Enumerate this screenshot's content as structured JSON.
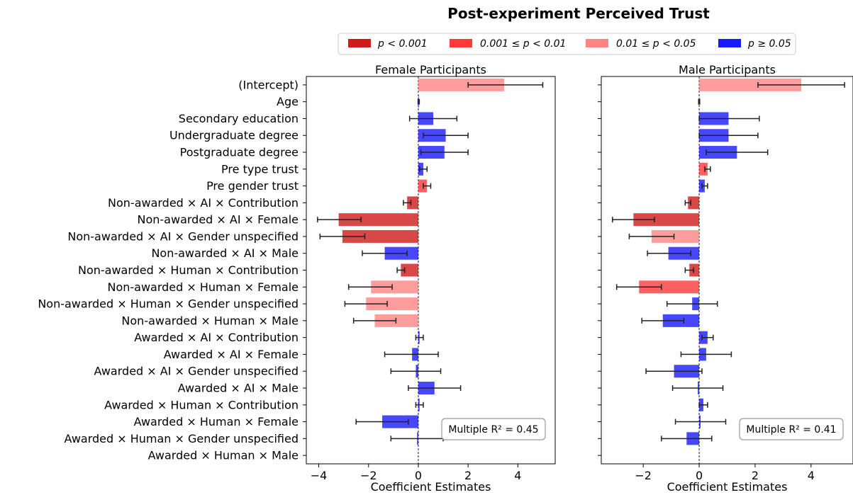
{
  "chart_data": {
    "type": "bar",
    "orientation": "horizontal",
    "title": "Post-experiment Perceived Trust",
    "categories": [
      "(Intercept)",
      "Age",
      "Secondary education",
      "Undergraduate degree",
      "Postgraduate degree",
      "Pre type trust",
      "Pre gender trust",
      "Non-awarded × AI × Contribution",
      "Non-awarded × AI × Female",
      "Non-awarded × AI × Gender unspecified",
      "Non-awarded × AI × Male",
      "Non-awarded × Human × Contribution",
      "Non-awarded × Human × Female",
      "Non-awarded × Human × Gender unspecified",
      "Non-awarded × Human × Male",
      "Awarded × AI × Contribution",
      "Awarded × AI × Female",
      "Awarded × AI × Gender unspecified",
      "Awarded × AI × Male",
      "Awarded × Human × Contribution",
      "Awarded × Human × Female",
      "Awarded × Human × Gender unspecified",
      "Awarded × Human × Male"
    ],
    "legend": {
      "placement": "top-center",
      "entries": [
        {
          "key": "p001",
          "label": "p < 0.001",
          "color": "#cc0000"
        },
        {
          "key": "p01",
          "label": "0.001 ≤ p < 0.01",
          "color": "#ff2222"
        },
        {
          "key": "p05",
          "label": "0.01 ≤ p < 0.05",
          "color": "#ff7777"
        },
        {
          "key": "ns",
          "label": "p ≥ 0.05",
          "color": "#0000ff"
        }
      ]
    },
    "xlabel": "Coefficient Estimates",
    "panels": [
      {
        "title": "Female Participants",
        "xlim": [
          -4.5,
          5.5
        ],
        "xticks": [
          -4,
          -2,
          0,
          2,
          4
        ],
        "r2_label": "Multiple R² = 0.45",
        "r2": 0.45,
        "bars": [
          {
            "value": 3.45,
            "ci": [
              2.0,
              5.0
            ],
            "sig": "p05"
          },
          {
            "value": 0.02,
            "ci": [
              -0.01,
              0.04
            ],
            "sig": "ns"
          },
          {
            "value": 0.6,
            "ci": [
              -0.35,
              1.55
            ],
            "sig": "ns"
          },
          {
            "value": 1.1,
            "ci": [
              0.2,
              2.0
            ],
            "sig": "ns"
          },
          {
            "value": 1.05,
            "ci": [
              0.1,
              2.0
            ],
            "sig": "ns"
          },
          {
            "value": 0.2,
            "ci": [
              0.05,
              0.35
            ],
            "sig": "ns"
          },
          {
            "value": 0.35,
            "ci": [
              0.2,
              0.5
            ],
            "sig": "p01"
          },
          {
            "value": -0.45,
            "ci": [
              -0.6,
              -0.3
            ],
            "sig": "p001"
          },
          {
            "value": -3.2,
            "ci": [
              -4.05,
              -2.3
            ],
            "sig": "p001"
          },
          {
            "value": -3.05,
            "ci": [
              -3.95,
              -2.15
            ],
            "sig": "p001"
          },
          {
            "value": -1.35,
            "ci": [
              -2.25,
              -0.45
            ],
            "sig": "ns"
          },
          {
            "value": -0.7,
            "ci": [
              -0.85,
              -0.55
            ],
            "sig": "p001"
          },
          {
            "value": -1.9,
            "ci": [
              -2.8,
              -1.05
            ],
            "sig": "p05"
          },
          {
            "value": -2.1,
            "ci": [
              -2.95,
              -1.25
            ],
            "sig": "p05"
          },
          {
            "value": -1.75,
            "ci": [
              -2.6,
              -0.9
            ],
            "sig": "p05"
          },
          {
            "value": 0.05,
            "ci": [
              -0.1,
              0.2
            ],
            "sig": "ns"
          },
          {
            "value": -0.25,
            "ci": [
              -1.35,
              0.8
            ],
            "sig": "ns"
          },
          {
            "value": -0.1,
            "ci": [
              -1.1,
              0.9
            ],
            "sig": "ns"
          },
          {
            "value": 0.65,
            "ci": [
              -0.4,
              1.7
            ],
            "sig": "ns"
          },
          {
            "value": 0.05,
            "ci": [
              -0.1,
              0.2
            ],
            "sig": "ns"
          },
          {
            "value": -1.45,
            "ci": [
              -2.5,
              -0.4
            ],
            "sig": "ns"
          },
          {
            "value": -0.05,
            "ci": [
              -1.1,
              1.0
            ],
            "sig": "ns"
          },
          {
            "value": 0.0,
            "ci": null,
            "sig": "ns"
          }
        ]
      },
      {
        "title": "Male Participants",
        "xlim": [
          -3.5,
          5.5
        ],
        "xticks": [
          -2,
          0,
          2,
          4
        ],
        "r2_label": "Multiple R² = 0.41",
        "r2": 0.41,
        "bars": [
          {
            "value": 3.65,
            "ci": [
              2.1,
              5.2
            ],
            "sig": "p05"
          },
          {
            "value": 0.0,
            "ci": [
              -0.02,
              0.02
            ],
            "sig": "ns"
          },
          {
            "value": 1.05,
            "ci": [
              0.0,
              2.15
            ],
            "sig": "ns"
          },
          {
            "value": 1.05,
            "ci": [
              0.0,
              2.1
            ],
            "sig": "ns"
          },
          {
            "value": 1.35,
            "ci": [
              0.25,
              2.45
            ],
            "sig": "ns"
          },
          {
            "value": 0.3,
            "ci": [
              0.2,
              0.4
            ],
            "sig": "p01"
          },
          {
            "value": 0.2,
            "ci": [
              0.1,
              0.3
            ],
            "sig": "ns"
          },
          {
            "value": -0.4,
            "ci": [
              -0.5,
              -0.3
            ],
            "sig": "p001"
          },
          {
            "value": -2.35,
            "ci": [
              -3.1,
              -1.6
            ],
            "sig": "p001"
          },
          {
            "value": -1.7,
            "ci": [
              -2.5,
              -0.9
            ],
            "sig": "p05"
          },
          {
            "value": -1.1,
            "ci": [
              -1.85,
              -0.3
            ],
            "sig": "ns"
          },
          {
            "value": -0.35,
            "ci": [
              -0.5,
              -0.2
            ],
            "sig": "p001"
          },
          {
            "value": -2.15,
            "ci": [
              -2.95,
              -1.35
            ],
            "sig": "p01"
          },
          {
            "value": -0.25,
            "ci": [
              -1.15,
              0.65
            ],
            "sig": "ns"
          },
          {
            "value": -1.3,
            "ci": [
              -2.05,
              -0.55
            ],
            "sig": "ns"
          },
          {
            "value": 0.3,
            "ci": [
              0.1,
              0.5
            ],
            "sig": "ns"
          },
          {
            "value": 0.25,
            "ci": [
              -0.65,
              1.15
            ],
            "sig": "ns"
          },
          {
            "value": -0.9,
            "ci": [
              -1.9,
              0.1
            ],
            "sig": "ns"
          },
          {
            "value": -0.05,
            "ci": [
              -0.95,
              0.85
            ],
            "sig": "ns"
          },
          {
            "value": 0.15,
            "ci": [
              0.0,
              0.3
            ],
            "sig": "ns"
          },
          {
            "value": 0.05,
            "ci": [
              -0.85,
              0.95
            ],
            "sig": "ns"
          },
          {
            "value": -0.45,
            "ci": [
              -1.35,
              0.45
            ],
            "sig": "ns"
          },
          {
            "value": 0.0,
            "ci": null,
            "sig": "ns"
          }
        ]
      }
    ]
  }
}
